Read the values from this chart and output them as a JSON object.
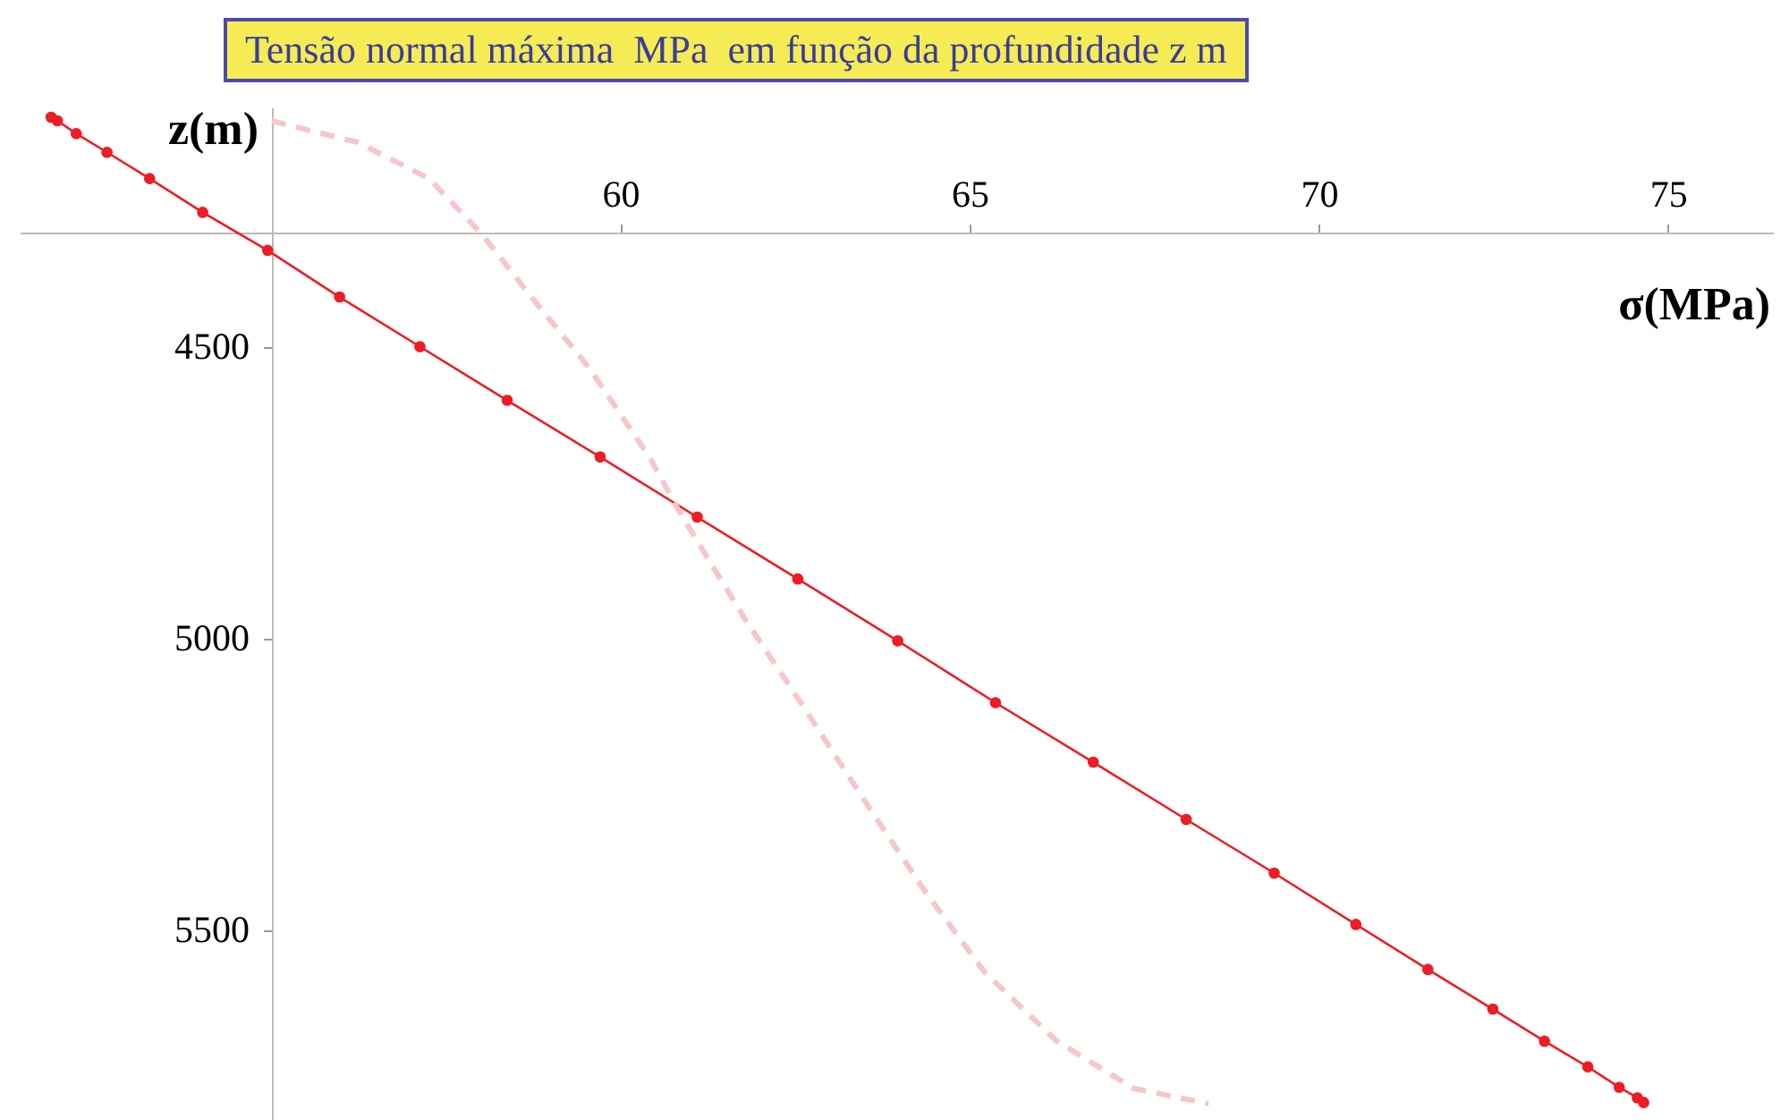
{
  "chart_data": {
    "type": "line",
    "title": "Tensão normal máxima  MPa  em função da profundidade z m",
    "xlabel": "σ(MPa)",
    "ylabel": "z(m)",
    "xlim": [
      51.4,
      76.5
    ],
    "ylim": [
      5825,
      4090
    ],
    "xticks": [
      60,
      65,
      70,
      75
    ],
    "yticks": [
      4500,
      5000,
      5500
    ],
    "grid": false,
    "series": [
      {
        "color": "#ee1c25",
        "marker": "circle",
        "line_style": "solid",
        "x": [
          51.85,
          51.94,
          52.21,
          52.65,
          53.26,
          54.02,
          54.95,
          55.98,
          57.13,
          58.38,
          59.71,
          61.1,
          62.54,
          63.97,
          65.37,
          66.77,
          68.1,
          69.36,
          70.53,
          71.56,
          72.49,
          73.23,
          73.85,
          74.3,
          74.56,
          74.65
        ],
        "values": [
          4107,
          4113,
          4135,
          4167,
          4212,
          4270,
          4335,
          4415,
          4500,
          4592,
          4689,
          4792,
          4898,
          5004,
          5110,
          5212,
          5310,
          5402,
          5490,
          5567,
          5635,
          5690,
          5734,
          5769,
          5787,
          5795
        ]
      },
      {
        "color": "#f7c6c6",
        "marker": "none",
        "line_style": "dashed",
        "x": [
          55.01,
          55.13,
          56.24,
          57.26,
          58.03,
          58.8,
          59.57,
          60.43,
          60.85,
          61.79,
          62.65,
          63.59,
          64.36,
          65.21,
          66.24,
          67.35,
          68.42
        ],
        "values": [
          4113,
          4117,
          4150,
          4212,
          4309,
          4426,
          4539,
          4692,
          4784,
          4968,
          5122,
          5295,
          5433,
          5571,
          5689,
          5771,
          5797
        ]
      }
    ]
  }
}
